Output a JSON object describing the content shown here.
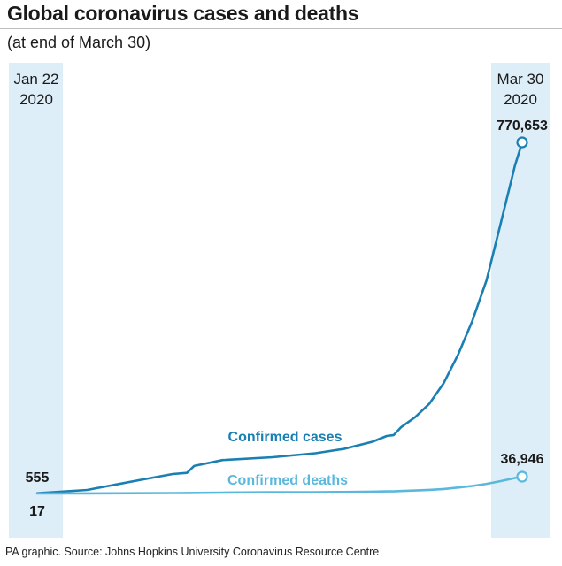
{
  "header": {
    "title": "Global coronavirus cases and deaths",
    "subtitle": "(at end of March 30)"
  },
  "footer": {
    "source": "PA graphic. Source: Johns Hopkins University Coronavirus Resource Centre"
  },
  "colors": {
    "cases": "#1a7fb3",
    "deaths": "#5bb8dd",
    "band": "#deeef9"
  },
  "chart_data": {
    "type": "line",
    "grid": false,
    "legend": "inline labels on lines",
    "date_labels": {
      "start": [
        "Jan 22",
        "2020"
      ],
      "end": [
        "Mar 30",
        "2020"
      ]
    },
    "end_labels": {
      "cases_start": "555",
      "cases_end": "770,653",
      "deaths_start": "17",
      "deaths_end": "36,946"
    },
    "ylim": [
      0,
      800000
    ],
    "x": [
      "2020-01-22",
      "2020-01-29",
      "2020-02-05",
      "2020-02-10",
      "2020-02-12",
      "2020-02-13",
      "2020-02-17",
      "2020-02-24",
      "2020-03-01",
      "2020-03-05",
      "2020-03-09",
      "2020-03-11",
      "2020-03-12",
      "2020-03-13",
      "2020-03-15",
      "2020-03-17",
      "2020-03-19",
      "2020-03-21",
      "2020-03-23",
      "2020-03-25",
      "2020-03-27",
      "2020-03-29",
      "2020-03-30"
    ],
    "series": [
      {
        "name": "Confirmed cases",
        "values": [
          555,
          7783,
          28266,
          42762,
          45171,
          60374,
          73332,
          79561,
          88371,
          97886,
          113582,
          126214,
          128343,
          145193,
          167449,
          197146,
          242488,
          304396,
          378287,
          467653,
          593291,
          720117,
          770653
        ]
      },
      {
        "name": "Confirmed deaths",
        "values": [
          17,
          170,
          565,
          1013,
          1118,
          1371,
          1870,
          2629,
          2996,
          3348,
          4011,
          4615,
          4720,
          5404,
          6514,
          7905,
          9867,
          12973,
          16505,
          21181,
          27198,
          33925,
          36946
        ]
      }
    ]
  }
}
